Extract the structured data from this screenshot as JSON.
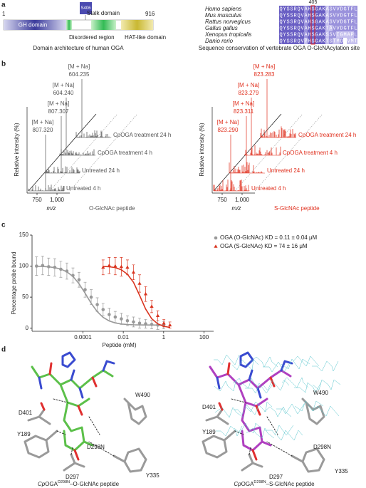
{
  "panel_a": {
    "label": "a",
    "start": "1",
    "end": "916",
    "site": "S406",
    "domains": {
      "gh": "GH domain",
      "disordered": "Disordered region",
      "stalk": "Stalk domain",
      "hat": "HAT-like domain"
    },
    "caption": "Domain architecture of human OGA",
    "alignment": {
      "position": "405",
      "species": [
        "Homo sapiens",
        "Mus musculus",
        "Rattus norvegicus",
        "Gallus gallus",
        "Xenopus tropicalis",
        "Danio rerio"
      ],
      "sequences": [
        "QYSSRQVAHSGAKASVVDGTFL",
        "QYSSRQVAHSGAKASVVDGTFL",
        "QYSSRQVAHSGAKASVVDGTFL",
        "QYSSRQVAHSGAKTAVVDGTFL",
        "QYSSRQVAHSGAKSSVIGMAPL",
        "QYSSRQVPHSGAKTSTMD-VMT"
      ],
      "caption": "Sequence conservation of vertebrate OGA O-GlcNAcylation site"
    }
  },
  "panel_b": {
    "label": "b",
    "y_label": "Relative intensity (%)",
    "x_label": "m/z",
    "x_ticks": [
      "750",
      "1,000"
    ],
    "spectra": [
      {
        "title": "O-GlcNAc peptide",
        "color": "#555555",
        "traces": [
          "CpOGA treatment 24 h",
          "CpOGA treatment 4 h",
          "Untreated 24 h",
          "Untreated 4 h"
        ],
        "peaks": [
          {
            "ion": "[M + Na]",
            "mass": "604.235"
          },
          {
            "ion": "[M + Na]",
            "mass": "604.240"
          },
          {
            "ion": "[M + Na]",
            "mass": "807.307"
          },
          {
            "ion": "[M + Na]",
            "mass": "807.320"
          }
        ]
      },
      {
        "title": "S-GlcNAc peptide",
        "color": "#e0301e",
        "traces": [
          "CpOGA treatment 24 h",
          "CpOGA treatment 4 h",
          "Untreated 24 h",
          "Untreated 4 h"
        ],
        "peaks": [
          {
            "ion": "[M + Na]",
            "mass": "823.283"
          },
          {
            "ion": "[M + Na]",
            "mass": "823.279"
          },
          {
            "ion": "[M + Na]",
            "mass": "823.311"
          },
          {
            "ion": "[M + Na]",
            "mass": "823.290"
          }
        ]
      }
    ]
  },
  "chart_data": {
    "type": "scatter",
    "label": "c",
    "x_label": "Peptide (mM)",
    "y_label": "Percentage probe bound",
    "xscale": "log",
    "xlim": [
      3e-07,
      300
    ],
    "ylim": [
      -5,
      150
    ],
    "xticks": [
      0.0001,
      0.01,
      1,
      100
    ],
    "yticks": [
      0,
      50,
      100,
      150
    ],
    "legend": "upper right",
    "series": [
      {
        "name": "OGA (O-GlcNAc) KD = 0.11 ± 0.04 μM",
        "color": "#999999",
        "marker": "circle",
        "x": [
          5e-07,
          1e-06,
          2e-06,
          4e-06,
          8e-06,
          1.6e-05,
          3.2e-05,
          6.4e-05,
          0.000128,
          0.000256,
          0.000512,
          0.001,
          0.002,
          0.004,
          0.008,
          0.016,
          0.032,
          0.064,
          0.128,
          0.256,
          0.512,
          1
        ],
        "values": [
          100,
          101,
          99,
          98,
          95,
          92,
          85,
          78,
          62,
          50,
          38,
          30,
          22,
          18,
          15,
          12,
          10,
          8,
          7,
          6,
          5,
          5
        ],
        "errors": [
          15,
          15,
          14,
          14,
          13,
          13,
          12,
          12,
          12,
          12,
          11,
          10,
          10,
          9,
          9,
          8,
          8,
          8,
          7,
          7,
          7,
          6
        ],
        "fit_values": [
          99.7,
          99.4,
          98.8,
          97.5,
          95.2,
          90.8,
          83.3,
          71.6,
          56.3,
          40.1,
          26.6,
          17.4,
          11.6,
          8.4,
          6.7,
          5.9,
          5.4,
          5.2,
          5.1,
          5.1,
          5,
          5
        ]
      },
      {
        "name": "OGA (S-GlcNAc) KD = 74 ± 16 μM",
        "color": "#d9341f",
        "marker": "triangle",
        "x": [
          0.001,
          0.002,
          0.004,
          0.008,
          0.016,
          0.032,
          0.064,
          0.128,
          0.256,
          0.512,
          1.024,
          2.048
        ],
        "values": [
          98,
          101,
          100,
          99,
          98,
          90,
          72,
          55,
          35,
          20,
          8,
          5
        ],
        "errors": [
          12,
          13,
          14,
          15,
          12,
          12,
          14,
          12,
          10,
          8,
          6,
          5
        ],
        "fit_values": [
          99.6,
          99,
          97.6,
          94.1,
          87,
          73.9,
          53,
          30.9,
          15.3,
          6.9,
          3,
          1.2
        ]
      }
    ]
  },
  "panel_d": {
    "label": "d",
    "structures": [
      {
        "residues": [
          "W490",
          "D401",
          "Y189",
          "D298N",
          "Y335",
          "D297"
        ],
        "caption": {
          "organism": "Cp",
          "protein": "OGA",
          "mutation": "D298N",
          "ligand": "–O-GlcNAc peptide"
        }
      },
      {
        "residues": [
          "W490",
          "D401",
          "Y189",
          "D298N",
          "Y335",
          "D297"
        ],
        "caption": {
          "organism": "Cp",
          "protein": "OGA",
          "mutation": "D298N",
          "ligand": "–S-GlcNAc peptide"
        }
      }
    ]
  }
}
